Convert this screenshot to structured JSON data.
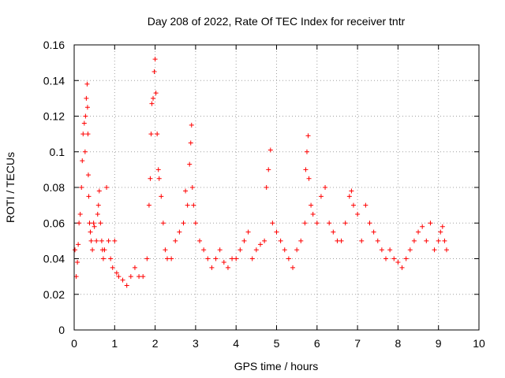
{
  "chart_data": {
    "type": "scatter",
    "title": "Day 208 of 2022, Rate Of TEC Index for receiver tntr",
    "xlabel": "GPS time / hours",
    "ylabel": "ROTI / TECUs",
    "xlim": [
      0,
      10
    ],
    "ylim": [
      0,
      0.16
    ],
    "grid": true,
    "marker": "+",
    "color": "#ff0000",
    "x_ticks": [
      "0",
      "1",
      "2",
      "3",
      "4",
      "5",
      "6",
      "7",
      "8",
      "9",
      "10"
    ],
    "y_ticks": [
      "0",
      "0.02",
      "0.04",
      "0.06",
      "0.08",
      "0.1",
      "0.12",
      "0.14",
      "0.16"
    ],
    "series": [
      {
        "name": "tntr",
        "x": [
          0.02,
          0.05,
          0.08,
          0.1,
          0.12,
          0.15,
          0.18,
          0.2,
          0.22,
          0.25,
          0.27,
          0.28,
          0.3,
          0.32,
          0.33,
          0.34,
          0.35,
          0.36,
          0.38,
          0.4,
          0.42,
          0.45,
          0.48,
          0.5,
          0.55,
          0.58,
          0.6,
          0.62,
          0.65,
          0.68,
          0.7,
          0.72,
          0.75,
          0.8,
          0.85,
          0.9,
          0.95,
          1.0,
          1.05,
          1.1,
          1.2,
          1.3,
          1.4,
          1.5,
          1.6,
          1.7,
          1.8,
          1.85,
          1.88,
          1.9,
          1.92,
          1.95,
          1.98,
          2.0,
          2.02,
          2.05,
          2.08,
          2.1,
          2.15,
          2.2,
          2.25,
          2.3,
          2.4,
          2.5,
          2.6,
          2.7,
          2.75,
          2.8,
          2.85,
          2.88,
          2.9,
          2.92,
          2.95,
          3.0,
          3.1,
          3.2,
          3.3,
          3.4,
          3.5,
          3.6,
          3.7,
          3.8,
          3.9,
          4.0,
          4.1,
          4.2,
          4.3,
          4.4,
          4.5,
          4.6,
          4.7,
          4.75,
          4.8,
          4.85,
          4.9,
          5.0,
          5.1,
          5.2,
          5.3,
          5.4,
          5.5,
          5.6,
          5.7,
          5.72,
          5.75,
          5.78,
          5.8,
          5.85,
          5.9,
          6.0,
          6.1,
          6.2,
          6.3,
          6.4,
          6.5,
          6.6,
          6.7,
          6.8,
          6.85,
          6.9,
          7.0,
          7.1,
          7.2,
          7.3,
          7.4,
          7.5,
          7.6,
          7.7,
          7.8,
          7.9,
          8.0,
          8.1,
          8.2,
          8.3,
          8.4,
          8.5,
          8.6,
          8.7,
          8.8,
          8.9,
          9.0,
          9.05,
          9.1,
          9.15,
          9.2
        ],
        "y": [
          0.045,
          0.03,
          0.038,
          0.048,
          0.06,
          0.065,
          0.08,
          0.095,
          0.11,
          0.116,
          0.1,
          0.12,
          0.13,
          0.138,
          0.125,
          0.11,
          0.087,
          0.075,
          0.06,
          0.055,
          0.05,
          0.045,
          0.06,
          0.058,
          0.05,
          0.065,
          0.07,
          0.078,
          0.06,
          0.05,
          0.045,
          0.04,
          0.045,
          0.08,
          0.05,
          0.04,
          0.035,
          0.05,
          0.032,
          0.03,
          0.028,
          0.025,
          0.03,
          0.035,
          0.03,
          0.03,
          0.04,
          0.07,
          0.085,
          0.11,
          0.127,
          0.13,
          0.145,
          0.152,
          0.133,
          0.11,
          0.09,
          0.085,
          0.075,
          0.06,
          0.045,
          0.04,
          0.04,
          0.05,
          0.055,
          0.06,
          0.078,
          0.07,
          0.093,
          0.105,
          0.115,
          0.08,
          0.07,
          0.06,
          0.05,
          0.045,
          0.04,
          0.035,
          0.04,
          0.045,
          0.038,
          0.035,
          0.04,
          0.04,
          0.045,
          0.05,
          0.055,
          0.04,
          0.045,
          0.048,
          0.05,
          0.08,
          0.09,
          0.101,
          0.06,
          0.055,
          0.05,
          0.045,
          0.04,
          0.035,
          0.045,
          0.05,
          0.06,
          0.09,
          0.1,
          0.109,
          0.085,
          0.07,
          0.065,
          0.06,
          0.075,
          0.08,
          0.06,
          0.055,
          0.05,
          0.05,
          0.06,
          0.075,
          0.078,
          0.07,
          0.065,
          0.05,
          0.07,
          0.06,
          0.055,
          0.05,
          0.045,
          0.04,
          0.045,
          0.04,
          0.038,
          0.035,
          0.04,
          0.045,
          0.05,
          0.055,
          0.058,
          0.05,
          0.06,
          0.045,
          0.05,
          0.055,
          0.058,
          0.05,
          0.045
        ]
      }
    ]
  }
}
